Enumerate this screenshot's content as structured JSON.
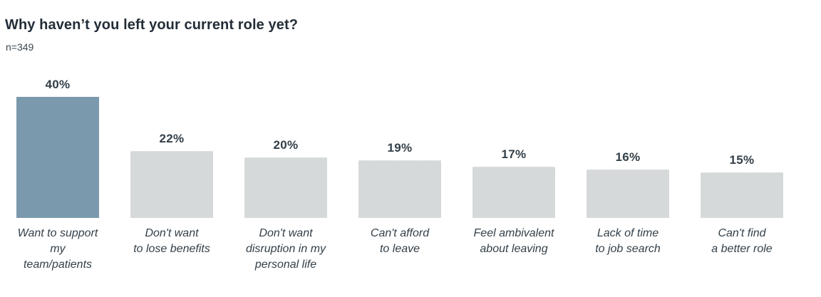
{
  "chart_data": {
    "type": "bar",
    "orientation": "vertical",
    "title": "Why haven’t you left your current role yet?",
    "subtitle": "n=349",
    "categories": [
      [
        "Want to support",
        "my team/patients"
      ],
      [
        "Don't want",
        "to lose benefits"
      ],
      [
        "Don't want",
        "disruption in my",
        "personal life"
      ],
      [
        "Can't afford",
        "to leave"
      ],
      [
        "Feel ambivalent",
        "about leaving"
      ],
      [
        "Lack of time",
        "to job search"
      ],
      [
        "Can't find",
        "a better role"
      ]
    ],
    "values": [
      40,
      22,
      20,
      19,
      17,
      16,
      15
    ],
    "value_labels": [
      "40%",
      "22%",
      "20%",
      "19%",
      "17%",
      "16%",
      "15%"
    ],
    "highlight_index": 0,
    "colors": {
      "highlight_bar": "#7b99ac",
      "default_bar": "#d6d9da",
      "label_text": "#333f48",
      "title_text": "#232d37"
    },
    "ylim": [
      0,
      42
    ],
    "axes_visible": false,
    "grid": false,
    "legend": false
  }
}
